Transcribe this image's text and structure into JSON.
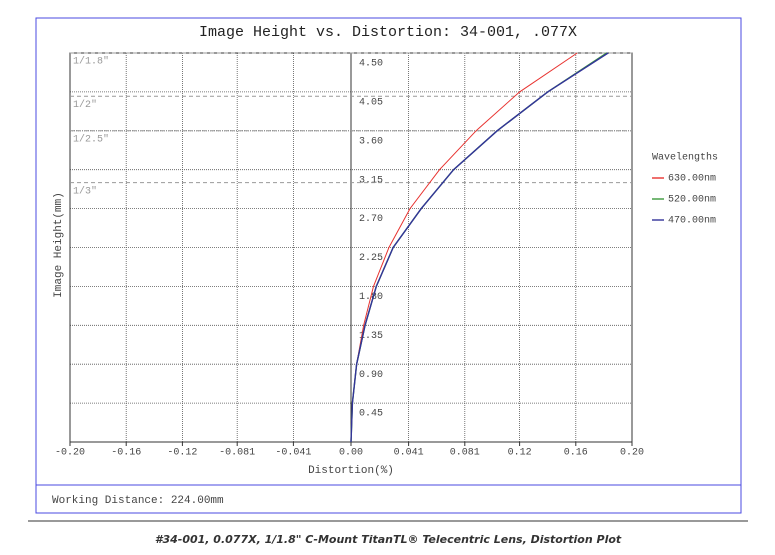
{
  "chart_data": {
    "type": "line",
    "title": "Image Height vs. Distortion: 34-001, .077X",
    "x_label": "Distortion(%)",
    "y_label": "Image Height(mm)",
    "legend_title": "Wavelengths",
    "xlim": [
      -0.2,
      0.2
    ],
    "ylim": [
      0,
      4.5
    ],
    "xticks": [
      {
        "value": -0.2,
        "label": "-0.20"
      },
      -0.16,
      -0.12,
      -0.081,
      -0.041,
      {
        "value": 0,
        "label": "0.00"
      },
      0.041,
      0.081,
      0.12,
      0.16,
      {
        "value": 0.2,
        "label": "0.20"
      }
    ],
    "yticks": [
      0.45,
      {
        "value": 0.9,
        "label": "0.90"
      },
      1.35,
      {
        "value": 1.8,
        "label": "1.80"
      },
      2.25,
      {
        "value": 2.7,
        "label": "2.70"
      },
      3.15,
      {
        "value": 3.6,
        "label": "3.60"
      },
      4.05,
      {
        "value": 4.5,
        "label": "4.50"
      }
    ],
    "y": [
      0,
      0.45,
      0.9,
      1.35,
      1.8,
      2.25,
      2.7,
      3.15,
      3.6,
      4.05,
      4.5
    ],
    "series": [
      {
        "name": "630.00nm",
        "color": "#e8322f",
        "values": [
          0,
          0.001,
          0.004,
          0.009,
          0.016,
          0.027,
          0.042,
          0.063,
          0.089,
          0.12,
          0.161
        ]
      },
      {
        "name": "520.00nm",
        "color": "#3a9a3a",
        "values": [
          0,
          0.001,
          0.004,
          0.01,
          0.018,
          0.03,
          0.05,
          0.073,
          0.104,
          0.14,
          0.182
        ]
      },
      {
        "name": "470.00nm",
        "color": "#33339a",
        "values": [
          0,
          0.001,
          0.004,
          0.01,
          0.018,
          0.03,
          0.05,
          0.073,
          0.104,
          0.14,
          0.183
        ]
      }
    ],
    "sensor_lines": [
      {
        "label": "1/1.8\"",
        "value": 4.5
      },
      {
        "label": "1/2\"",
        "value": 4.0
      },
      {
        "label": "1/2.5\"",
        "value": 3.6
      },
      {
        "label": "1/3\"",
        "value": 3.0
      }
    ],
    "footer": "Working Distance: 224.00mm",
    "caption": "#34-001, 0.077X, 1/1.8\" C-Mount TitanTL® Telecentric Lens, Distortion Plot",
    "grid": true
  }
}
